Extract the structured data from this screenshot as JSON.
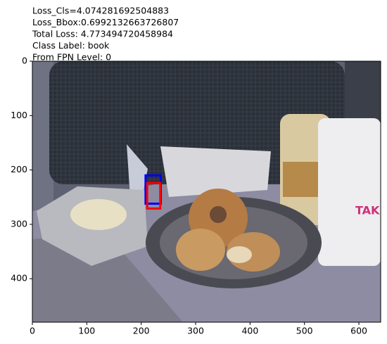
{
  "chart_data": {
    "type": "image",
    "title_lines": [
      "Loss_Cls=4.074281692504883",
      "Loss_Bbox:0.6992132663726807",
      "Total Loss: 4.773494720458984",
      "Class Label: book",
      "From FPN Level: 0"
    ],
    "xlim": [
      0,
      640
    ],
    "ylim": [
      480,
      0
    ],
    "xticks": [
      0,
      100,
      200,
      300,
      400,
      500,
      600
    ],
    "yticks": [
      0,
      100,
      200,
      300,
      400
    ],
    "boxes": [
      {
        "color": "#0000ff",
        "coords": [
          208,
          210,
          236,
          262
        ]
      },
      {
        "color": "#ff0000",
        "coords": [
          211,
          224,
          235,
          271
        ]
      }
    ]
  }
}
